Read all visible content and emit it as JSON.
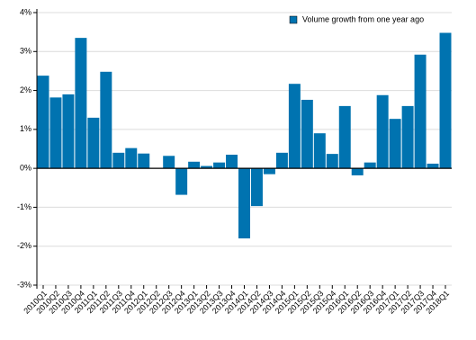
{
  "chart_data": {
    "type": "bar",
    "categories": [
      "2010Q1",
      "2010Q2",
      "2010Q3",
      "2010Q4",
      "2011Q1",
      "2011Q2",
      "2011Q3",
      "2011Q4",
      "2012Q1",
      "2012Q2",
      "2012Q3",
      "2012Q4",
      "2013Q1",
      "2013Q2",
      "2013Q3",
      "2013Q4",
      "2014Q1",
      "2014Q2",
      "2014Q3",
      "2014Q4",
      "2015Q1",
      "2015Q2",
      "2015Q3",
      "2015Q4",
      "2016Q1",
      "2016Q2",
      "2016Q3",
      "2016Q4",
      "2017Q1",
      "2017Q2",
      "2017Q3",
      "2017Q4",
      "2018Q1"
    ],
    "series": [
      {
        "name": "Volume growth from one year ago",
        "color": "#0073b0",
        "values": [
          2.38,
          1.82,
          1.9,
          3.35,
          1.3,
          2.48,
          0.4,
          0.52,
          0.38,
          0.0,
          0.32,
          -0.68,
          0.17,
          0.06,
          0.15,
          0.35,
          -1.8,
          -0.97,
          -0.15,
          0.4,
          2.17,
          1.76,
          0.9,
          0.37,
          1.6,
          -0.18,
          0.15,
          1.88,
          1.27,
          1.6,
          2.92,
          0.12,
          3.48
        ]
      }
    ],
    "ylim": [
      -3,
      4
    ],
    "yticks": [
      {
        "value": -3,
        "label": "-3%"
      },
      {
        "value": -2,
        "label": "-2%"
      },
      {
        "value": -1,
        "label": "-1%"
      },
      {
        "value": 0,
        "label": "0%"
      },
      {
        "value": 1,
        "label": "1%"
      },
      {
        "value": 2,
        "label": "2%"
      },
      {
        "value": 3,
        "label": "3%"
      },
      {
        "value": 4,
        "label": "4%"
      }
    ],
    "grid": true,
    "legend": "top-right"
  }
}
